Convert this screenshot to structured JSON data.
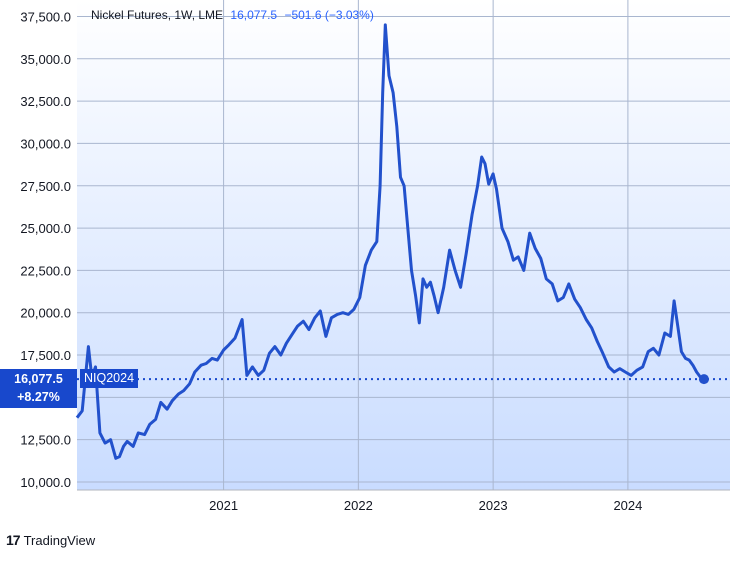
{
  "header": {
    "title": "Nickel Futures, 1W, LME",
    "last": "16,077.5",
    "change": "−501.6 (−3.03%)"
  },
  "price_tag": {
    "value": "16,077.5",
    "change": "+8.27%"
  },
  "series_tag": "NIQ2024",
  "footer": {
    "brand": "TradingView"
  },
  "colors": {
    "line": "#2251cc",
    "tag": "#1848cc",
    "bg_top": "#ffffff",
    "bg_bottom": "#c9dcff"
  },
  "chart_data": {
    "type": "line",
    "title": "Nickel Futures, 1W, LME",
    "y_ticks": [
      "10,000.0",
      "12,500.0",
      "15,000.0",
      "17,500.0",
      "20,000.0",
      "22,500.0",
      "25,000.0",
      "27,500.0",
      "30,000.0",
      "32,500.0",
      "35,000.0",
      "37,500.0"
    ],
    "x_ticks": [
      "2021",
      "2022",
      "2023",
      "2024"
    ],
    "ylim": [
      10000,
      38000
    ],
    "xlim": [
      "2019-12-01",
      "2024-09-01"
    ],
    "last_value": 16077.5,
    "grid": true,
    "series": [
      {
        "x": [
          "2019-12-01",
          "2019-12-15",
          "2020-01-01",
          "2020-01-10",
          "2020-01-20",
          "2020-02-01",
          "2020-02-15",
          "2020-03-01",
          "2020-03-15",
          "2020-03-25",
          "2020-04-05",
          "2020-04-15",
          "2020-05-01",
          "2020-05-15",
          "2020-06-01",
          "2020-06-15",
          "2020-07-01",
          "2020-07-15",
          "2020-08-01",
          "2020-08-15",
          "2020-09-01",
          "2020-09-15",
          "2020-10-01",
          "2020-10-15",
          "2020-11-01",
          "2020-11-15",
          "2020-12-01",
          "2020-12-15",
          "2021-01-01",
          "2021-01-15",
          "2021-02-01",
          "2021-02-20",
          "2021-03-05",
          "2021-03-20",
          "2021-04-05",
          "2021-04-20",
          "2021-05-05",
          "2021-05-20",
          "2021-06-05",
          "2021-06-20",
          "2021-07-05",
          "2021-07-20",
          "2021-08-05",
          "2021-08-20",
          "2021-09-05",
          "2021-09-20",
          "2021-10-05",
          "2021-10-20",
          "2021-11-05",
          "2021-11-20",
          "2021-12-05",
          "2021-12-20",
          "2022-01-05",
          "2022-01-20",
          "2022-02-05",
          "2022-02-20",
          "2022-03-01",
          "2022-03-08",
          "2022-03-15",
          "2022-03-25",
          "2022-04-05",
          "2022-04-15",
          "2022-04-25",
          "2022-05-05",
          "2022-05-15",
          "2022-05-25",
          "2022-06-05",
          "2022-06-15",
          "2022-06-25",
          "2022-07-05",
          "2022-07-15",
          "2022-07-25",
          "2022-08-05",
          "2022-08-20",
          "2022-09-05",
          "2022-09-20",
          "2022-10-05",
          "2022-10-20",
          "2022-11-05",
          "2022-11-20",
          "2022-12-01",
          "2022-12-10",
          "2022-12-20",
          "2023-01-01",
          "2023-01-10",
          "2023-01-25",
          "2023-02-10",
          "2023-02-25",
          "2023-03-10",
          "2023-03-25",
          "2023-04-10",
          "2023-04-25",
          "2023-05-10",
          "2023-05-25",
          "2023-06-10",
          "2023-06-25",
          "2023-07-10",
          "2023-07-25",
          "2023-08-10",
          "2023-08-25",
          "2023-09-10",
          "2023-09-25",
          "2023-10-10",
          "2023-10-25",
          "2023-11-10",
          "2023-11-25",
          "2023-12-10",
          "2023-12-25",
          "2024-01-10",
          "2024-01-25",
          "2024-02-10",
          "2024-02-25",
          "2024-03-10",
          "2024-03-25",
          "2024-04-10",
          "2024-04-25",
          "2024-05-05",
          "2024-05-15",
          "2024-05-25",
          "2024-06-05",
          "2024-06-15",
          "2024-06-25",
          "2024-07-05",
          "2024-07-15",
          "2024-07-25"
        ],
        "y": [
          13800,
          14200,
          18000,
          16200,
          16800,
          12900,
          12300,
          12500,
          11400,
          11500,
          12100,
          12400,
          12100,
          12900,
          12800,
          13400,
          13700,
          14700,
          14300,
          14800,
          15200,
          15400,
          15800,
          16500,
          16900,
          17000,
          17300,
          17200,
          17800,
          18100,
          18500,
          19600,
          16300,
          16800,
          16300,
          16600,
          17600,
          18000,
          17500,
          18200,
          18700,
          19200,
          19500,
          19000,
          19700,
          20100,
          18600,
          19700,
          19900,
          20000,
          19900,
          20200,
          20900,
          22800,
          23700,
          24200,
          27500,
          33000,
          37000,
          34000,
          33000,
          31000,
          28000,
          27500,
          25000,
          22500,
          21000,
          19400,
          22000,
          21500,
          21800,
          21000,
          20000,
          21500,
          23700,
          22500,
          21500,
          23500,
          25800,
          27500,
          29200,
          28800,
          27600,
          28200,
          27300,
          25000,
          24200,
          23100,
          23300,
          22500,
          24700,
          23800,
          23200,
          22000,
          21700,
          20700,
          20900,
          21700,
          20800,
          20300,
          19600,
          19100,
          18300,
          17600,
          16800,
          16500,
          16700,
          16500,
          16300,
          16600,
          16800,
          17700,
          17900,
          17500,
          18800,
          18600,
          20700,
          19200,
          17700,
          17300,
          17200,
          16900,
          16500,
          16200,
          16077.5
        ]
      }
    ]
  }
}
